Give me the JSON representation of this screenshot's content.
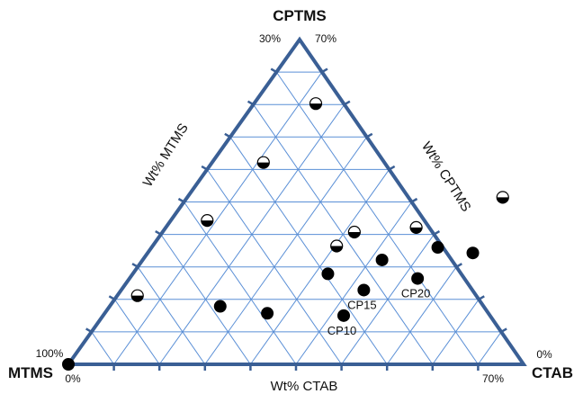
{
  "chart_data": {
    "type": "scatter",
    "subtype": "ternary",
    "vertices": {
      "top": "CPTMS",
      "left": "MTMS",
      "right": "CTAB"
    },
    "axis_titles": {
      "left": "Wt% MTMS",
      "right": "Wt% CPTMS",
      "bottom": "Wt% CTAB"
    },
    "range_labels": {
      "top_left": "30%",
      "top_right": "70%",
      "left_bottom": "100%",
      "bottom_left": "0%",
      "right_bottom": "0%",
      "bottom_right": "70%"
    },
    "ranges": {
      "CTAB": [
        0,
        70
      ],
      "CPTMS": [
        0,
        70
      ],
      "MTMS": [
        30,
        100
      ]
    },
    "grid": true,
    "grid_step": 7,
    "marker_types": [
      "filled",
      "half-filled"
    ],
    "points": [
      {
        "ctab": 0.0,
        "cptms": 0.0,
        "marker": "filled",
        "label": ""
      },
      {
        "ctab": 3.1,
        "cptms": 14.8,
        "marker": "half-filled",
        "label": ""
      },
      {
        "ctab": 5.6,
        "cptms": 31.0,
        "marker": "half-filled",
        "label": ""
      },
      {
        "ctab": 7.9,
        "cptms": 43.5,
        "marker": "half-filled",
        "label": ""
      },
      {
        "ctab": 9.5,
        "cptms": 56.2,
        "marker": "half-filled",
        "label": ""
      },
      {
        "ctab": 17.0,
        "cptms": 12.5,
        "marker": "filled",
        "label": ""
      },
      {
        "ctab": 25.0,
        "cptms": 11.0,
        "marker": "filled",
        "label": ""
      },
      {
        "ctab": 30.0,
        "cptms": 19.5,
        "marker": "filled",
        "label": ""
      },
      {
        "ctab": 28.3,
        "cptms": 25.5,
        "marker": "half-filled",
        "label": ""
      },
      {
        "ctab": 29.5,
        "cptms": 28.5,
        "marker": "half-filled",
        "label": ""
      },
      {
        "ctab": 37.0,
        "cptms": 10.5,
        "marker": "filled",
        "label": "CP10"
      },
      {
        "ctab": 37.3,
        "cptms": 16.0,
        "marker": "filled",
        "label": "CP15"
      },
      {
        "ctab": 36.8,
        "cptms": 22.5,
        "marker": "filled",
        "label": ""
      },
      {
        "ctab": 38.5,
        "cptms": 29.5,
        "marker": "half-filled",
        "label": ""
      },
      {
        "ctab": 44.3,
        "cptms": 18.5,
        "marker": "filled",
        "label": "CP20"
      },
      {
        "ctab": 44.0,
        "cptms": 25.2,
        "marker": "filled",
        "label": ""
      },
      {
        "ctab": 50.0,
        "cptms": 24.0,
        "marker": "filled",
        "label": ""
      },
      {
        "ctab": 48.5,
        "cptms": 36.0,
        "marker": "half-filled",
        "label": ""
      }
    ]
  },
  "colors": {
    "frame": "#3a5f95",
    "grid": "#5a8fd6",
    "marker": "#000000",
    "marker_half": "#ffffff"
  }
}
